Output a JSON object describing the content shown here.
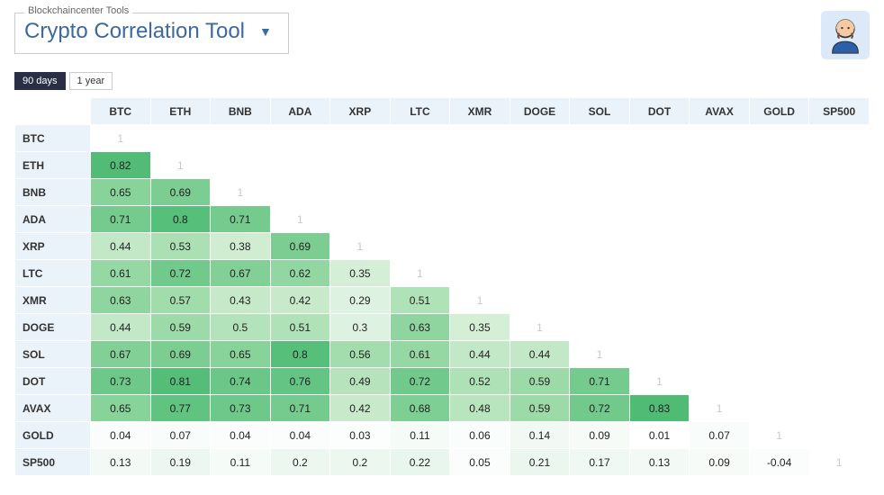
{
  "header": {
    "legend": "Blockchaincenter Tools",
    "title": "Crypto Correlation Tool"
  },
  "tabs": [
    {
      "label": "90 days",
      "active": true
    },
    {
      "label": "1 year",
      "active": false
    }
  ],
  "matrix": {
    "type": "heatmap",
    "labels": [
      "BTC",
      "ETH",
      "BNB",
      "ADA",
      "XRP",
      "LTC",
      "XMR",
      "DOGE",
      "SOL",
      "DOT",
      "AVAX",
      "GOLD",
      "SP500"
    ],
    "header_bg": "#eaf2fa",
    "diag_color": "#c8c8c8",
    "text_color": "#222222",
    "color_scale": {
      "stops": [
        {
          "v": 0.0,
          "color": "#ffffff"
        },
        {
          "v": 0.2,
          "color": "#ecf7f0"
        },
        {
          "v": 0.4,
          "color": "#cdeccf"
        },
        {
          "v": 0.6,
          "color": "#99d9a5"
        },
        {
          "v": 0.8,
          "color": "#56bf7a"
        },
        {
          "v": 1.0,
          "color": "#2aa45a"
        }
      ]
    },
    "values": {
      "ETH": {
        "BTC": 0.82
      },
      "BNB": {
        "BTC": 0.65,
        "ETH": 0.69
      },
      "ADA": {
        "BTC": 0.71,
        "ETH": 0.8,
        "BNB": 0.71
      },
      "XRP": {
        "BTC": 0.44,
        "ETH": 0.53,
        "BNB": 0.38,
        "ADA": 0.69
      },
      "LTC": {
        "BTC": 0.61,
        "ETH": 0.72,
        "BNB": 0.67,
        "ADA": 0.62,
        "XRP": 0.35
      },
      "XMR": {
        "BTC": 0.63,
        "ETH": 0.57,
        "BNB": 0.43,
        "ADA": 0.42,
        "XRP": 0.29,
        "LTC": 0.51
      },
      "DOGE": {
        "BTC": 0.44,
        "ETH": 0.59,
        "BNB": 0.5,
        "ADA": 0.51,
        "XRP": 0.3,
        "LTC": 0.63,
        "XMR": 0.35
      },
      "SOL": {
        "BTC": 0.67,
        "ETH": 0.69,
        "BNB": 0.65,
        "ADA": 0.8,
        "XRP": 0.56,
        "LTC": 0.61,
        "XMR": 0.44,
        "DOGE": 0.44
      },
      "DOT": {
        "BTC": 0.73,
        "ETH": 0.81,
        "BNB": 0.74,
        "ADA": 0.76,
        "XRP": 0.49,
        "LTC": 0.72,
        "XMR": 0.52,
        "DOGE": 0.59,
        "SOL": 0.71
      },
      "AVAX": {
        "BTC": 0.65,
        "ETH": 0.77,
        "BNB": 0.73,
        "ADA": 0.71,
        "XRP": 0.42,
        "LTC": 0.68,
        "XMR": 0.48,
        "DOGE": 0.59,
        "SOL": 0.72,
        "DOT": 0.83
      },
      "GOLD": {
        "BTC": 0.04,
        "ETH": 0.07,
        "BNB": 0.04,
        "ADA": 0.04,
        "XRP": 0.03,
        "LTC": 0.11,
        "XMR": 0.06,
        "DOGE": 0.14,
        "SOL": 0.09,
        "DOT": 0.01,
        "AVAX": 0.07
      },
      "SP500": {
        "BTC": 0.13,
        "ETH": 0.19,
        "BNB": 0.11,
        "ADA": 0.2,
        "XRP": 0.2,
        "LTC": 0.22,
        "XMR": 0.05,
        "DOGE": 0.21,
        "SOL": 0.17,
        "DOT": 0.13,
        "AVAX": 0.09,
        "GOLD": -0.04
      }
    }
  }
}
